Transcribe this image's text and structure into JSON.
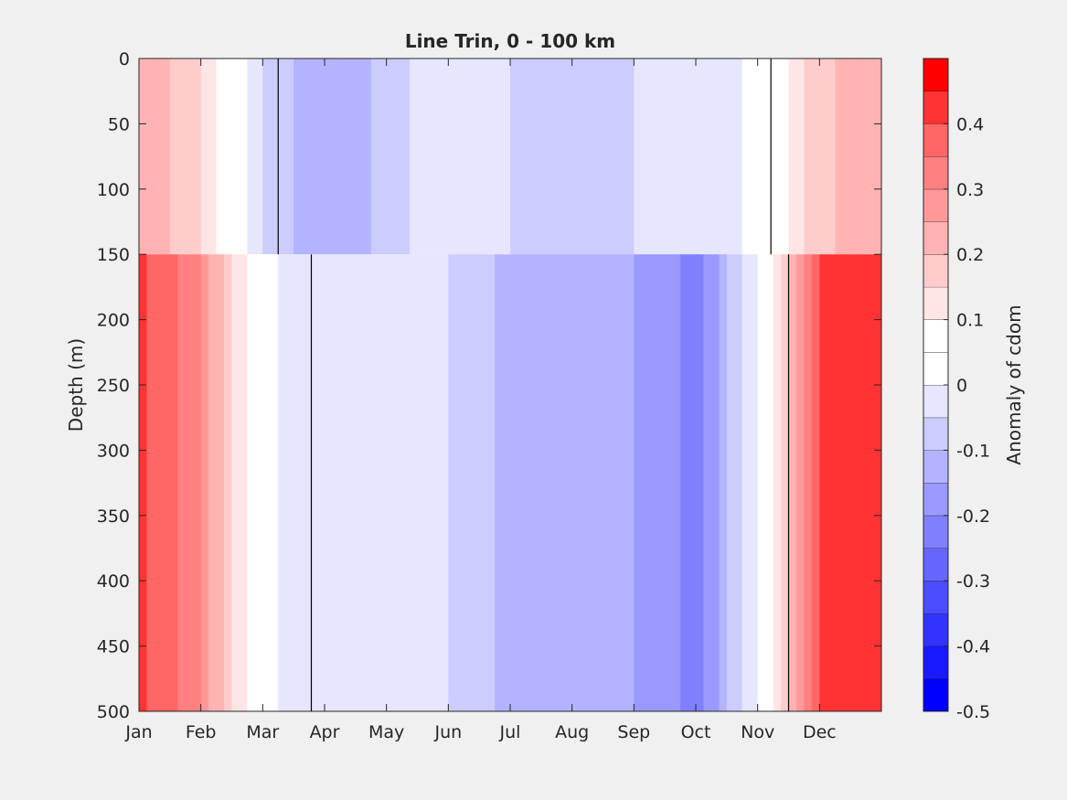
{
  "chart_data": {
    "type": "heatmap",
    "title": "Line Trin, 0 - 100 km",
    "ylabel": "Depth (m)",
    "xlabel": "",
    "x_tick_labels": [
      "Jan",
      "Feb",
      "Mar",
      "Apr",
      "May",
      "Jun",
      "Jul",
      "Aug",
      "Sep",
      "Oct",
      "Nov",
      "Dec"
    ],
    "y_ticks": [
      0,
      50,
      100,
      150,
      200,
      250,
      300,
      350,
      400,
      450,
      500
    ],
    "ylim": [
      0,
      500
    ],
    "y_reversed": true,
    "colorbar": {
      "label": "Anomaly of cdom",
      "ticks": [
        -0.5,
        -0.4,
        -0.3,
        -0.2,
        -0.1,
        0,
        0.1,
        0.2,
        0.3,
        0.4
      ],
      "range": [
        -0.5,
        0.5
      ],
      "levels": [
        {
          "min": -0.5,
          "max": -0.45,
          "color": "#0000ff"
        },
        {
          "min": -0.45,
          "max": -0.4,
          "color": "#1919ff"
        },
        {
          "min": -0.4,
          "max": -0.35,
          "color": "#3333ff"
        },
        {
          "min": -0.35,
          "max": -0.3,
          "color": "#4c4cff"
        },
        {
          "min": -0.3,
          "max": -0.25,
          "color": "#6666ff"
        },
        {
          "min": -0.25,
          "max": -0.2,
          "color": "#8080ff"
        },
        {
          "min": -0.2,
          "max": -0.15,
          "color": "#9999ff"
        },
        {
          "min": -0.15,
          "max": -0.1,
          "color": "#b3b3ff"
        },
        {
          "min": -0.1,
          "max": -0.05,
          "color": "#ccccff"
        },
        {
          "min": -0.05,
          "max": 0,
          "color": "#e6e6ff"
        },
        {
          "min": 0,
          "max": 0.05,
          "color": "#ffffff"
        },
        {
          "min": 0.05,
          "max": 0.1,
          "color": "#ffffff"
        },
        {
          "min": 0.1,
          "max": 0.15,
          "color": "#ffe6e6"
        },
        {
          "min": 0.15,
          "max": 0.2,
          "color": "#ffcccc"
        },
        {
          "min": 0.2,
          "max": 0.25,
          "color": "#ffb3b3"
        },
        {
          "min": 0.25,
          "max": 0.3,
          "color": "#ff9999"
        },
        {
          "min": 0.3,
          "max": 0.35,
          "color": "#ff8080"
        },
        {
          "min": 0.35,
          "max": 0.4,
          "color": "#ff6666"
        },
        {
          "min": 0.4,
          "max": 0.45,
          "color": "#ff3333"
        },
        {
          "min": 0.45,
          "max": 0.5,
          "color": "#ff0000"
        }
      ]
    },
    "month_profile": {
      "months": [
        "Jan",
        "Feb",
        "Mar",
        "Apr",
        "May",
        "Jun",
        "Jul",
        "Aug",
        "Sep",
        "Oct",
        "Nov",
        "Dec"
      ],
      "surface_layer_0_150m": [
        0.25,
        0.15,
        -0.05,
        -0.15,
        -0.08,
        0.0,
        -0.05,
        -0.06,
        -0.05,
        -0.05,
        0.02,
        0.18
      ],
      "deep_layer_150_500m": [
        0.42,
        0.3,
        0.02,
        -0.05,
        -0.02,
        -0.05,
        -0.12,
        -0.14,
        -0.15,
        -0.22,
        0.0,
        0.42
      ]
    },
    "zero_contour": true
  }
}
